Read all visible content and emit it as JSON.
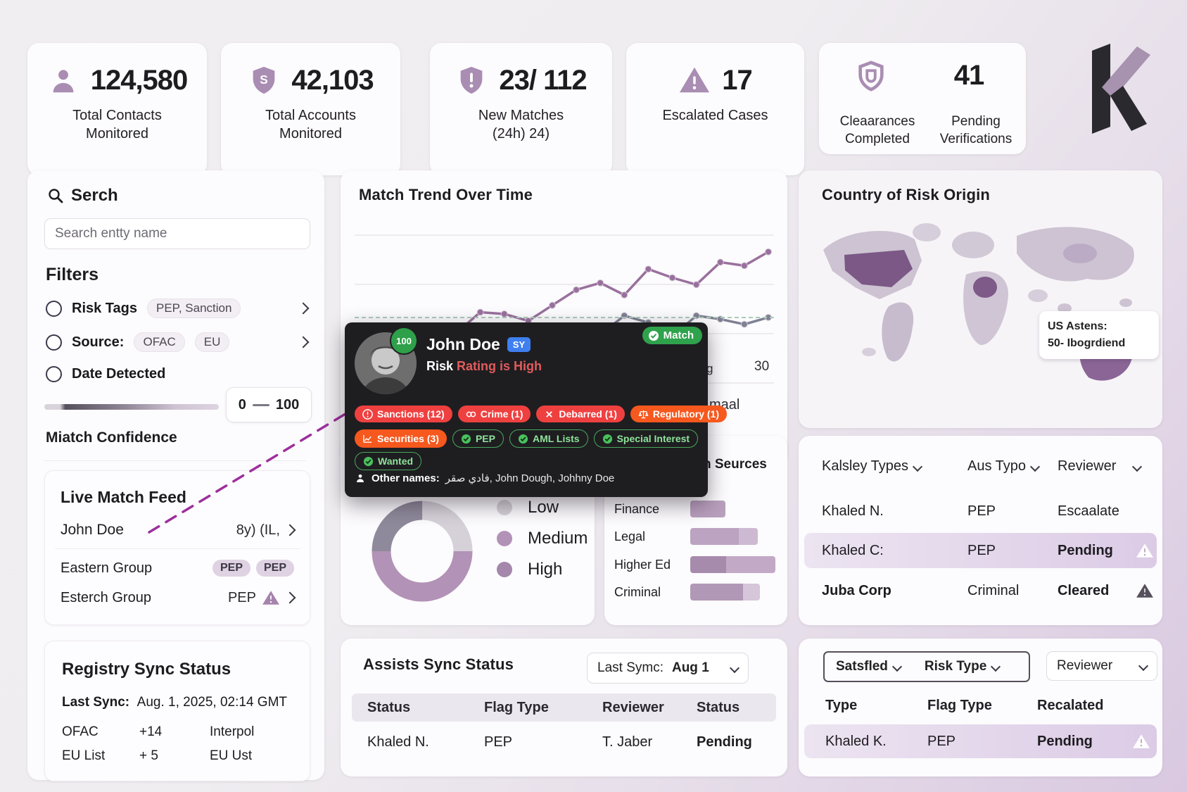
{
  "colors": {
    "accent": "#9b7aa3",
    "icon_purple": "#a98db2",
    "red": "#ef4040",
    "orange": "#f6581e",
    "green": "#2fa24c",
    "blue": "#3f7ff0",
    "purple_dark": "#7b5886",
    "line_purple": "#99709d",
    "line_gray": "#7e8093"
  },
  "stats": [
    {
      "icon": "person-icon",
      "value": "124,580",
      "label": "Total Contacts Monitored"
    },
    {
      "icon": "shield-s-icon",
      "value": "42,103",
      "label": "Total Accounts Monitored"
    },
    {
      "icon": "shield-alert-icon",
      "value": "23/ 112",
      "label": "New Matches",
      "sub": "(24h) 24)"
    },
    {
      "icon": "warning-triangle-icon",
      "value": "17",
      "label": "Escalated Cases"
    },
    {
      "icon": "shield-check-icon",
      "value": "41",
      "label_left": "Cleaarances Completed",
      "label_right": "Pending Verifications"
    }
  ],
  "sidebar": {
    "search_title": "Serch",
    "search_placeholder": "Search entty name",
    "filters_title": "Filters",
    "filters": [
      {
        "label": "Risk Tags",
        "chip": "PEP, Sanction"
      },
      {
        "label": "Source:",
        "chip1": "OFAC",
        "chip2": "EU"
      },
      {
        "label": "Date Detected"
      }
    ],
    "range_min": "0",
    "range_max": "100",
    "confidence_label": "Miatch Confidence",
    "feed": {
      "title": "Live Match Feed",
      "rows": [
        {
          "name": "John Doe",
          "right": "8y) (IL,"
        },
        {
          "name": "Eastern Group",
          "chip1": "PEP",
          "chip2": "PEP"
        },
        {
          "name": "Esterch Group",
          "right": "PEP"
        }
      ]
    },
    "registry": {
      "title": "Registry Sync Status",
      "last_sync_label": "Last Sync:",
      "last_sync_value": "Aug. 1, 2025, 02:14 GMT",
      "rows": [
        {
          "c1": "OFAC",
          "c2": "+14",
          "c3": "Interpol"
        },
        {
          "c1": "EU List",
          "c2": "+ 5",
          "c3": "EU Ust"
        }
      ]
    }
  },
  "trend": {
    "title": "Match Trend Over Time",
    "fragments": {
      "f1": "g",
      "f2": "30",
      "f3": "maal"
    }
  },
  "chart_data": [
    {
      "type": "line",
      "title": "Match Trend Over Time",
      "x": "time (unlabeled ticks)",
      "grid": true,
      "series": [
        {
          "name": "primary-purple",
          "values": [
            22,
            33,
            29,
            41,
            38,
            50,
            49,
            45,
            54,
            63,
            67,
            60,
            75,
            70,
            66,
            79,
            77,
            85
          ]
        },
        {
          "name": "secondary-gray",
          "values": [
            7,
            14,
            11,
            20,
            17,
            27,
            37,
            32,
            27,
            24,
            37,
            48,
            44,
            36,
            48,
            46,
            43,
            47
          ]
        }
      ],
      "ylim": [
        0,
        100
      ],
      "legend": "none",
      "annotations": [
        "dashed threshold line near bottom",
        "visible tick fragments: g, 30, maal"
      ]
    },
    {
      "type": "pie",
      "labels": [
        "Low",
        "Medium",
        "High"
      ],
      "values": [
        25,
        50,
        25
      ],
      "colors": [
        "#d6d1d9",
        "#b292b6",
        "#8f8a9b"
      ],
      "legend_position": "right",
      "donut": true
    },
    {
      "type": "bar",
      "title_fragment": "n Seurces",
      "orientation": "horizontal",
      "categories": [
        "Finance",
        "Legal",
        "Higher Ed",
        "Criminal"
      ],
      "values": [
        32,
        62,
        78,
        64
      ],
      "xlim": [
        0,
        100
      ]
    }
  ],
  "popup": {
    "score": "100",
    "name": "John Doe",
    "badge": "SY",
    "risk_prefix": "Risk",
    "risk_text": "Rating is High",
    "match_label": "Match",
    "tags": {
      "sanctions": "Sanctions (12)",
      "crime": "Crime (1)",
      "debarred": "Debarred (1)",
      "regulatory": "Regulatory (1)",
      "securities": "Securities (3)",
      "pep": "PEP",
      "aml": "AML Lists",
      "special": "Special Interest",
      "wanted": "Wanted"
    },
    "other_names_label": "Other names:",
    "other_names": "فادي صقر, John Dough, Johhny Doe"
  },
  "map_card": {
    "title": "Country of Risk Origin",
    "label_line1": "US Astens:",
    "label_line2": "50- Ibogrdiend"
  },
  "entities_table": {
    "headers": {
      "h1": "Kalsley Types",
      "h2": "Aus Typo",
      "h3": "Reviewer"
    },
    "rows": [
      {
        "name": "Khaled N.",
        "type": "PEP",
        "status": "Escaalate"
      },
      {
        "name": "Khaled C:",
        "type": "PEP",
        "status": "Pending"
      },
      {
        "name": "Juba Corp",
        "type": "Criminal",
        "status": "Cleared"
      }
    ]
  },
  "assists_table": {
    "title": "Assists  Sync Status",
    "last_sync_label": "Last Symc:",
    "last_sync_value": "Aug 1",
    "headers": {
      "h1": "Status",
      "h2": "Flag Type",
      "h3": "Reviewer",
      "h4": "Status"
    },
    "rows": [
      {
        "c1": "Khaled N.",
        "c2": "PEP",
        "c3": "T. Jaber",
        "c4": "Pending"
      }
    ]
  },
  "review_table": {
    "dropdowns": {
      "d1": "Satsfled",
      "d2": "Risk Type",
      "d3": "Reviewer"
    },
    "headers": {
      "h1": "Type",
      "h2": "Flag Type",
      "h3": "Recalated"
    },
    "rows": [
      {
        "c1": "Khaled K.",
        "c2": "PEP",
        "c3": "Pending"
      }
    ]
  }
}
